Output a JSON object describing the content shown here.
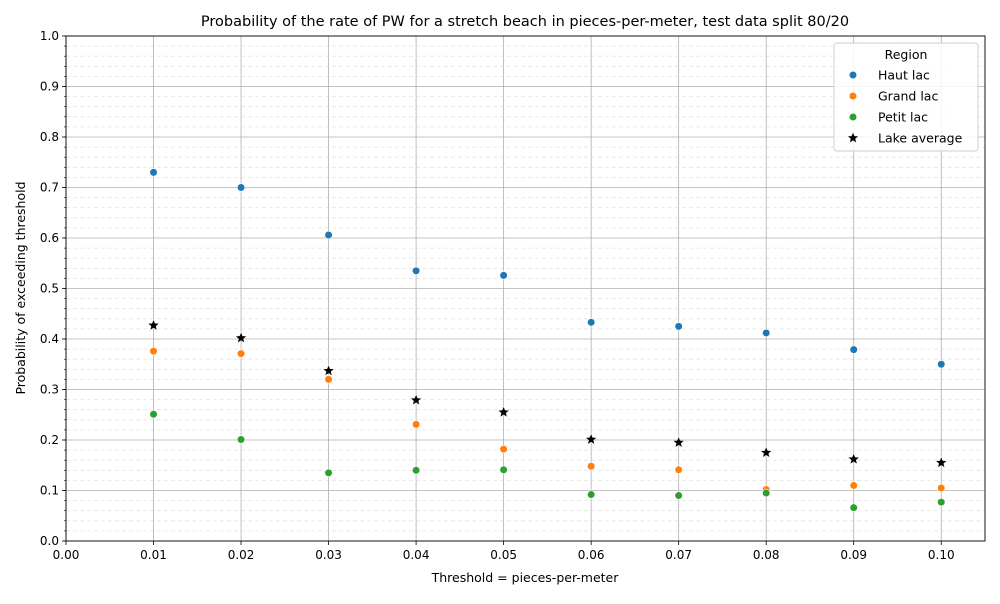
{
  "chart_data": {
    "type": "scatter",
    "title": "Probability of the rate of PW for a stretch beach in pieces-per-meter, test data split 80/20",
    "xlabel": "Threshold = pieces-per-meter",
    "ylabel": "Probability of exceeding threshold",
    "xlim": [
      0.0,
      0.105
    ],
    "ylim": [
      0.0,
      1.0
    ],
    "x_ticks": [
      "0.00",
      "0.01",
      "0.02",
      "0.03",
      "0.04",
      "0.05",
      "0.06",
      "0.07",
      "0.08",
      "0.09",
      "0.10"
    ],
    "y_ticks": [
      "0.0",
      "0.1",
      "0.2",
      "0.3",
      "0.4",
      "0.5",
      "0.6",
      "0.7",
      "0.8",
      "0.9",
      "1.0"
    ],
    "grid": true,
    "legend": {
      "title": "Region",
      "position": "top-right"
    },
    "x": [
      0.01,
      0.02,
      0.03,
      0.04,
      0.05,
      0.06,
      0.07,
      0.08,
      0.09,
      0.1
    ],
    "series": [
      {
        "name": "Haut lac",
        "marker": "circle",
        "color": "#1f77b4",
        "values": [
          0.73,
          0.7,
          0.606,
          0.535,
          0.526,
          0.433,
          0.425,
          0.412,
          0.379,
          0.35
        ]
      },
      {
        "name": "Grand lac",
        "marker": "circle",
        "color": "#ff7f0e",
        "values": [
          0.376,
          0.371,
          0.32,
          0.231,
          0.182,
          0.148,
          0.141,
          0.102,
          0.11,
          0.105
        ]
      },
      {
        "name": "Petit lac",
        "marker": "circle",
        "color": "#2ca02c",
        "values": [
          0.251,
          0.201,
          0.135,
          0.14,
          0.141,
          0.092,
          0.09,
          0.095,
          0.066,
          0.077
        ]
      },
      {
        "name": "Lake average",
        "marker": "star",
        "color": "#000000",
        "values": [
          0.427,
          0.402,
          0.337,
          0.279,
          0.255,
          0.201,
          0.195,
          0.175,
          0.162,
          0.155
        ]
      }
    ]
  }
}
